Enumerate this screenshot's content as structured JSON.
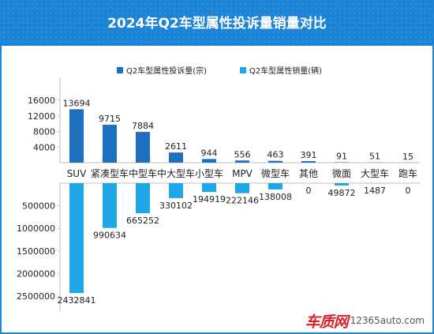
{
  "header": {
    "title": "2024年Q2车型属性投诉量销量对比"
  },
  "watermark": {
    "logo": "车质网",
    "url": "12365auto.com"
  },
  "colors": {
    "header_bg": "#1b84d6",
    "complaints": "#1f6fbf",
    "sales": "#1ea6e6",
    "text": "#222222"
  },
  "chart_data": {
    "type": "bar",
    "title": "2024年Q2车型属性投诉量销量对比",
    "categories": [
      "SUV",
      "紧凑型车",
      "中型车",
      "中大型车",
      "小型车",
      "MPV",
      "微型车",
      "其他",
      "微面",
      "大型车",
      "跑车"
    ],
    "series": [
      {
        "name": "Q2车型属性投诉量(宗)",
        "values": [
          13694,
          9715,
          7884,
          2611,
          944,
          556,
          463,
          391,
          91,
          51,
          15
        ]
      },
      {
        "name": "Q2车型属性销量(辆)",
        "values": [
          2432841,
          990634,
          665252,
          330102,
          194919,
          222146,
          138008,
          0,
          49872,
          1487,
          0
        ]
      }
    ],
    "upper_axis": {
      "ticks": [
        4000,
        8000,
        12000,
        16000
      ],
      "tick_labels": [
        "4000",
        "8000",
        "12000",
        "16000"
      ],
      "range": [
        0,
        16000
      ]
    },
    "lower_axis": {
      "ticks": [
        500000,
        1000000,
        1500000,
        2000000,
        2500000
      ],
      "tick_labels": [
        "500000",
        "1000000",
        "1500000",
        "2000000",
        "2500000"
      ],
      "range": [
        0,
        2500000
      ]
    },
    "legend_position": "top",
    "grid": false
  }
}
